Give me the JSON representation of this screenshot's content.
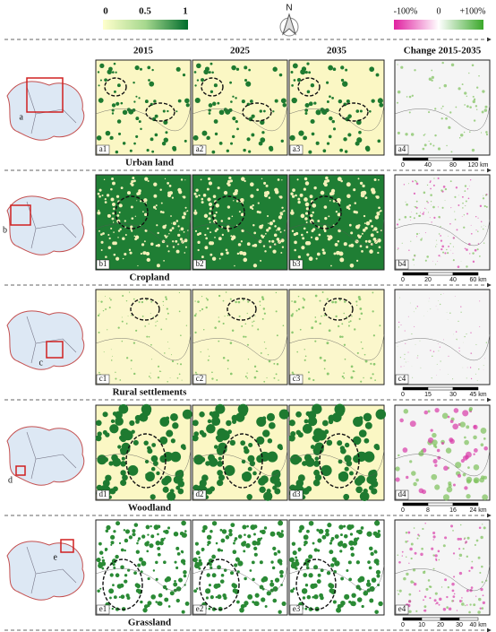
{
  "legend": {
    "density": [
      "0",
      "0.5",
      "1"
    ],
    "change": [
      "-100%",
      "0",
      "+100%"
    ]
  },
  "north": "N",
  "columns": [
    "2015",
    "2025",
    "2035",
    "Change 2015-2035"
  ],
  "rows": [
    {
      "locator": "a",
      "title": "Urban land",
      "panels": [
        "a1",
        "a2",
        "a3",
        "a4"
      ],
      "scale": [
        "0",
        "40",
        "80",
        "120 km"
      ]
    },
    {
      "locator": "b",
      "title": "Cropland",
      "panels": [
        "b1",
        "b2",
        "b3",
        "b4"
      ],
      "scale": [
        "0",
        "20",
        "40",
        "60 km"
      ]
    },
    {
      "locator": "c",
      "title": "Rural settlements",
      "panels": [
        "c1",
        "c2",
        "c3",
        "c4"
      ],
      "scale": [
        "0",
        "15",
        "30",
        "45 km"
      ]
    },
    {
      "locator": "d",
      "title": "Woodland",
      "panels": [
        "d1",
        "d2",
        "d3",
        "d4"
      ],
      "scale": [
        "0",
        "8",
        "16",
        "24 km"
      ]
    },
    {
      "locator": "e",
      "title": "Grassland",
      "panels": [
        "e1",
        "e2",
        "e3",
        "e4"
      ],
      "scale": [
        "0",
        "10",
        "20",
        "30",
        "40 km"
      ]
    }
  ]
}
